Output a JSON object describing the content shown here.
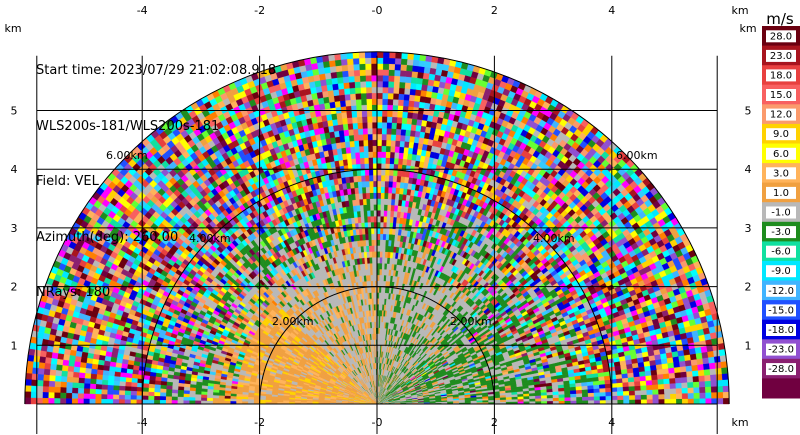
{
  "header": {
    "start_time": "Start time: 2023/07/29 21:02:08.918",
    "station": "WLS200s-181/WLS200s-181",
    "field": "Field: VEL",
    "azimuth": "Azimuth(deg): 260.00",
    "nrays": "NRays: 180"
  },
  "chart_data": {
    "type": "heatmap",
    "description_type": "polar-sector-ppi",
    "x_unit": "km",
    "y_unit": "km",
    "x_ticks": [
      "-4",
      "-2",
      "-0",
      "2",
      "4"
    ],
    "x_tick_values": [
      -4,
      -2,
      0,
      2,
      4
    ],
    "y_ticks": [
      "1",
      "2",
      "3",
      "4",
      "5"
    ],
    "y_tick_values": [
      1,
      2,
      3,
      4,
      5
    ],
    "xlim": [
      -6,
      6
    ],
    "ylim": [
      0,
      6
    ],
    "max_range_km": 6,
    "range_rings": [
      {
        "range_km": 2,
        "label": "2.00km"
      },
      {
        "range_km": 4,
        "label": "4.00km"
      },
      {
        "range_km": 6,
        "label": "6.00km"
      }
    ],
    "grid": true,
    "colorbar": {
      "unit": "m/s",
      "labels": [
        "28.0",
        "23.0",
        "18.0",
        "15.0",
        "12.0",
        "9.0",
        "6.0",
        "3.0",
        "1.0",
        "-1.0",
        "-3.0",
        "-6.0",
        "-9.0",
        "-12.0",
        "-15.0",
        "-18.0",
        "-23.0",
        "-28.0"
      ],
      "colors": [
        "#6b0010",
        "#a8141e",
        "#e8403f",
        "#f86060",
        "#fb9a6c",
        "#ffd200",
        "#ffff00",
        "#ffb35a",
        "#f0a040",
        "#b8b8b8",
        "#1e8c1e",
        "#10e0a0",
        "#00e8ff",
        "#40b4ff",
        "#2050ff",
        "#0000e0",
        "#9050d0",
        "#8a2070",
        "#700040"
      ]
    },
    "regions": [
      {
        "name": "approaching-core",
        "range_km": [
          0,
          2.4
        ],
        "angle_deg": [
          90,
          180
        ],
        "value": 1.0
      },
      {
        "name": "receding-core",
        "range_km": [
          0,
          2.4
        ],
        "angle_deg": [
          0,
          90
        ],
        "value": -1.0
      },
      {
        "name": "noise",
        "range_km": [
          2.4,
          6
        ],
        "angle_deg": [
          0,
          180
        ],
        "value": null
      }
    ]
  }
}
